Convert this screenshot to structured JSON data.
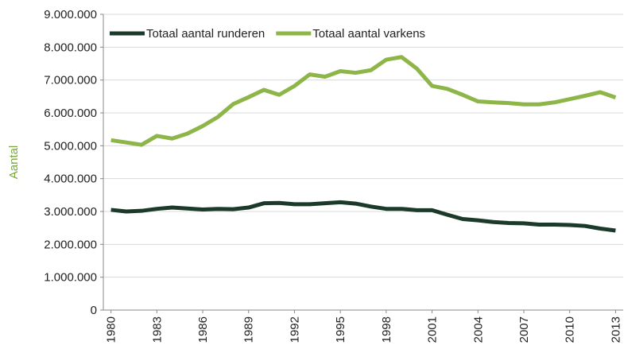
{
  "chart_data": {
    "type": "line",
    "y_label": "Aantal",
    "x": [
      1980,
      1981,
      1982,
      1983,
      1984,
      1985,
      1986,
      1987,
      1988,
      1989,
      1990,
      1991,
      1992,
      1993,
      1994,
      1995,
      1996,
      1997,
      1998,
      1999,
      2000,
      2001,
      2002,
      2003,
      2004,
      2005,
      2006,
      2007,
      2008,
      2009,
      2010,
      2011,
      2012,
      2013
    ],
    "xlim": [
      1979.5,
      2013.5
    ],
    "xticks": [
      1980,
      1983,
      1986,
      1989,
      1992,
      1995,
      1998,
      2001,
      2004,
      2007,
      2010,
      2013
    ],
    "ylim": [
      0,
      9000000
    ],
    "yticks": [
      0,
      {
        "value": 1000000,
        "label": "1.000.000"
      },
      {
        "value": 2000000,
        "label": "2.000.000"
      },
      {
        "value": 3000000,
        "label": "3.000.000"
      },
      {
        "value": 4000000,
        "label": "4.000.000"
      },
      {
        "value": 5000000,
        "label": "5.000.000"
      },
      {
        "value": 6000000,
        "label": "6.000.000"
      },
      {
        "value": 7000000,
        "label": "7.000.000"
      },
      {
        "value": 8000000,
        "label": "8.000.000"
      },
      {
        "value": 9000000,
        "label": "9.000.000"
      }
    ],
    "grid": true,
    "legend": "top-left",
    "series": [
      {
        "name": "Totaal aantal runderen",
        "color": "#1b3a2a",
        "values": [
          3050000,
          3000000,
          3020000,
          3080000,
          3120000,
          3090000,
          3060000,
          3080000,
          3070000,
          3120000,
          3250000,
          3260000,
          3220000,
          3220000,
          3250000,
          3280000,
          3240000,
          3150000,
          3080000,
          3080000,
          3040000,
          3040000,
          2900000,
          2770000,
          2730000,
          2680000,
          2650000,
          2640000,
          2600000,
          2600000,
          2590000,
          2560000,
          2480000,
          2420000
        ]
      },
      {
        "name": "Totaal aantal varkens",
        "color": "#8db548",
        "values": [
          5170000,
          5100000,
          5030000,
          5300000,
          5220000,
          5370000,
          5600000,
          5880000,
          6270000,
          6480000,
          6700000,
          6550000,
          6820000,
          7170000,
          7100000,
          7270000,
          7220000,
          7300000,
          7620000,
          7700000,
          7350000,
          6820000,
          6730000,
          6550000,
          6350000,
          6320000,
          6300000,
          6260000,
          6260000,
          6320000,
          6420000,
          6520000,
          6630000,
          6470000
        ]
      }
    ]
  }
}
